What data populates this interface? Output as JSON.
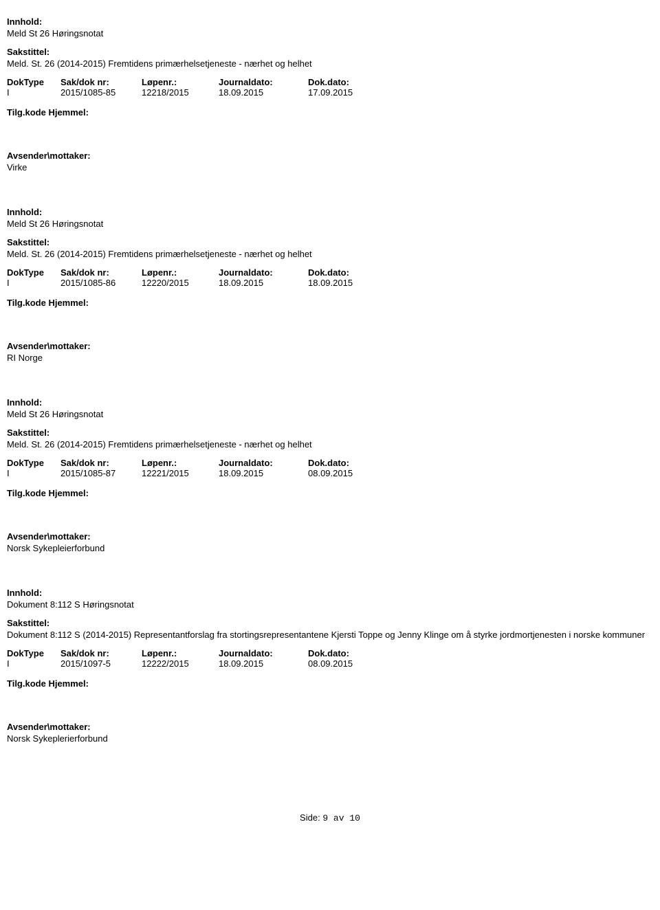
{
  "labels": {
    "innhold": "Innhold:",
    "sakstittel": "Sakstittel:",
    "doktype": "DokType",
    "sakdok": "Sak/dok nr:",
    "lopenr": "Løpenr.:",
    "journaldato": "Journaldato:",
    "dokdato": "Dok.dato:",
    "tilgkode": "Tilg.kode",
    "hjemmel": "Hjemmel:",
    "avsender": "Avsender\\mottaker:",
    "side": "Side:"
  },
  "records": [
    {
      "innhold": "Meld St 26 Høringsnotat",
      "sakstittel": "Meld. St. 26 (2014-2015) Fremtidens primærhelsetjeneste - nærhet og helhet",
      "doktype": "I",
      "sakdok": "2015/1085-85",
      "lopenr": "12218/2015",
      "journaldato": "18.09.2015",
      "dokdato": "17.09.2015",
      "sender": "Virke"
    },
    {
      "innhold": "Meld St 26 Høringsnotat",
      "sakstittel": "Meld. St. 26 (2014-2015) Fremtidens primærhelsetjeneste - nærhet og helhet",
      "doktype": "I",
      "sakdok": "2015/1085-86",
      "lopenr": "12220/2015",
      "journaldato": "18.09.2015",
      "dokdato": "18.09.2015",
      "sender": "RI Norge"
    },
    {
      "innhold": "Meld St 26 Høringsnotat",
      "sakstittel": "Meld. St. 26 (2014-2015) Fremtidens primærhelsetjeneste - nærhet og helhet",
      "doktype": "I",
      "sakdok": "2015/1085-87",
      "lopenr": "12221/2015",
      "journaldato": "18.09.2015",
      "dokdato": "08.09.2015",
      "sender": "Norsk Sykepleierforbund"
    },
    {
      "innhold": "Dokument 8:112 S Høringsnotat",
      "sakstittel": "Dokument 8:112 S (2014-2015) Representantforslag fra stortingsrepresentantene Kjersti Toppe og Jenny Klinge om å styrke jordmortjenesten i norske kommuner",
      "doktype": "I",
      "sakdok": "2015/1097-5",
      "lopenr": "12222/2015",
      "journaldato": "18.09.2015",
      "dokdato": "08.09.2015",
      "sender": "Norsk Sykeplerierforbund"
    }
  ],
  "page": {
    "current": "9",
    "sep": " av ",
    "total": "10"
  }
}
